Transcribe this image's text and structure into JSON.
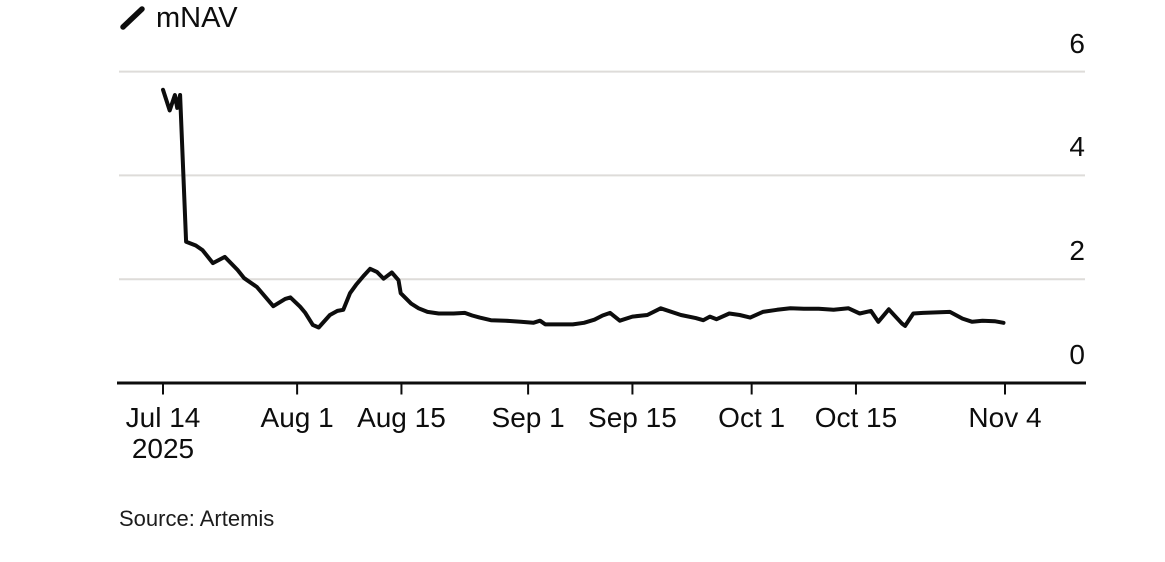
{
  "legend": {
    "label": "mNAV",
    "marker_icon": "line-swatch-icon"
  },
  "source": {
    "text": "Source: Artemis"
  },
  "colors": {
    "line": "#0d0d0d",
    "grid": "#dedcd9",
    "axis": "#0d0d0d",
    "text": "#0d0d0d",
    "background": "#ffffff"
  },
  "chart_data": {
    "type": "line",
    "title": "",
    "series_name": "mNAV",
    "x_unit": "days since Jul 14, 2025",
    "xlim_days": [
      -1,
      115
    ],
    "ylim": [
      0,
      6.6
    ],
    "grid": "horizontal-only",
    "legend_position": "top-left",
    "y_axis_side": "right",
    "x_ticks": [
      {
        "day": 0,
        "label": "Jul 14",
        "sublabel": "2025"
      },
      {
        "day": 18,
        "label": "Aug 1"
      },
      {
        "day": 32,
        "label": "Aug 15"
      },
      {
        "day": 49,
        "label": "Sep 1"
      },
      {
        "day": 63,
        "label": "Sep 15"
      },
      {
        "day": 79,
        "label": "Oct 1"
      },
      {
        "day": 93,
        "label": "Oct 15"
      },
      {
        "day": 113,
        "label": "Nov 4"
      }
    ],
    "y_ticks": [
      {
        "value": 0,
        "label": "0"
      },
      {
        "value": 2,
        "label": "2"
      },
      {
        "value": 4,
        "label": "4"
      },
      {
        "value": 6,
        "label": "6"
      }
    ],
    "points": [
      [
        0,
        5.65
      ],
      [
        0.9,
        5.25
      ],
      [
        1.6,
        5.55
      ],
      [
        1.9,
        5.3
      ],
      [
        2.3,
        5.55
      ],
      [
        3.1,
        2.72
      ],
      [
        4.4,
        2.65
      ],
      [
        5.3,
        2.56
      ],
      [
        6.7,
        2.31
      ],
      [
        8.3,
        2.43
      ],
      [
        10,
        2.18
      ],
      [
        10.9,
        2.02
      ],
      [
        12.6,
        1.85
      ],
      [
        14.8,
        1.48
      ],
      [
        16.4,
        1.62
      ],
      [
        17.1,
        1.65
      ],
      [
        18.4,
        1.47
      ],
      [
        19.1,
        1.35
      ],
      [
        20.1,
        1.12
      ],
      [
        20.9,
        1.07
      ],
      [
        22.4,
        1.31
      ],
      [
        23.4,
        1.39
      ],
      [
        24.2,
        1.41
      ],
      [
        25.1,
        1.73
      ],
      [
        25.9,
        1.89
      ],
      [
        26.9,
        2.06
      ],
      [
        27.8,
        2.2
      ],
      [
        28.7,
        2.14
      ],
      [
        29.6,
        2.01
      ],
      [
        30.7,
        2.13
      ],
      [
        31.6,
        1.98
      ],
      [
        31.9,
        1.73
      ],
      [
        33.3,
        1.53
      ],
      [
        34.3,
        1.44
      ],
      [
        35.5,
        1.37
      ],
      [
        37,
        1.34
      ],
      [
        39,
        1.34
      ],
      [
        40.5,
        1.35
      ],
      [
        41.5,
        1.3
      ],
      [
        42.5,
        1.26
      ],
      [
        44,
        1.21
      ],
      [
        46,
        1.2
      ],
      [
        48,
        1.18
      ],
      [
        49.7,
        1.16
      ],
      [
        50.6,
        1.2
      ],
      [
        51.3,
        1.13
      ],
      [
        53,
        1.13
      ],
      [
        55,
        1.13
      ],
      [
        56.5,
        1.16
      ],
      [
        57.9,
        1.22
      ],
      [
        59,
        1.3
      ],
      [
        60,
        1.35
      ],
      [
        61.3,
        1.2
      ],
      [
        63,
        1.28
      ],
      [
        65,
        1.31
      ],
      [
        66.8,
        1.44
      ],
      [
        69.5,
        1.31
      ],
      [
        71.5,
        1.25
      ],
      [
        72.5,
        1.21
      ],
      [
        73.4,
        1.28
      ],
      [
        74.3,
        1.23
      ],
      [
        76,
        1.34
      ],
      [
        77.4,
        1.31
      ],
      [
        78.8,
        1.26
      ],
      [
        80.5,
        1.37
      ],
      [
        82.4,
        1.41
      ],
      [
        84.2,
        1.44
      ],
      [
        86,
        1.43
      ],
      [
        88,
        1.43
      ],
      [
        90,
        1.41
      ],
      [
        92,
        1.44
      ],
      [
        93.5,
        1.34
      ],
      [
        95,
        1.39
      ],
      [
        96,
        1.18
      ],
      [
        97.4,
        1.42
      ],
      [
        99.2,
        1.14
      ],
      [
        99.6,
        1.1
      ],
      [
        100.7,
        1.34
      ],
      [
        102,
        1.35
      ],
      [
        105.6,
        1.37
      ],
      [
        107.3,
        1.24
      ],
      [
        108.6,
        1.18
      ],
      [
        110,
        1.2
      ],
      [
        111.6,
        1.19
      ],
      [
        112.8,
        1.16
      ]
    ]
  }
}
